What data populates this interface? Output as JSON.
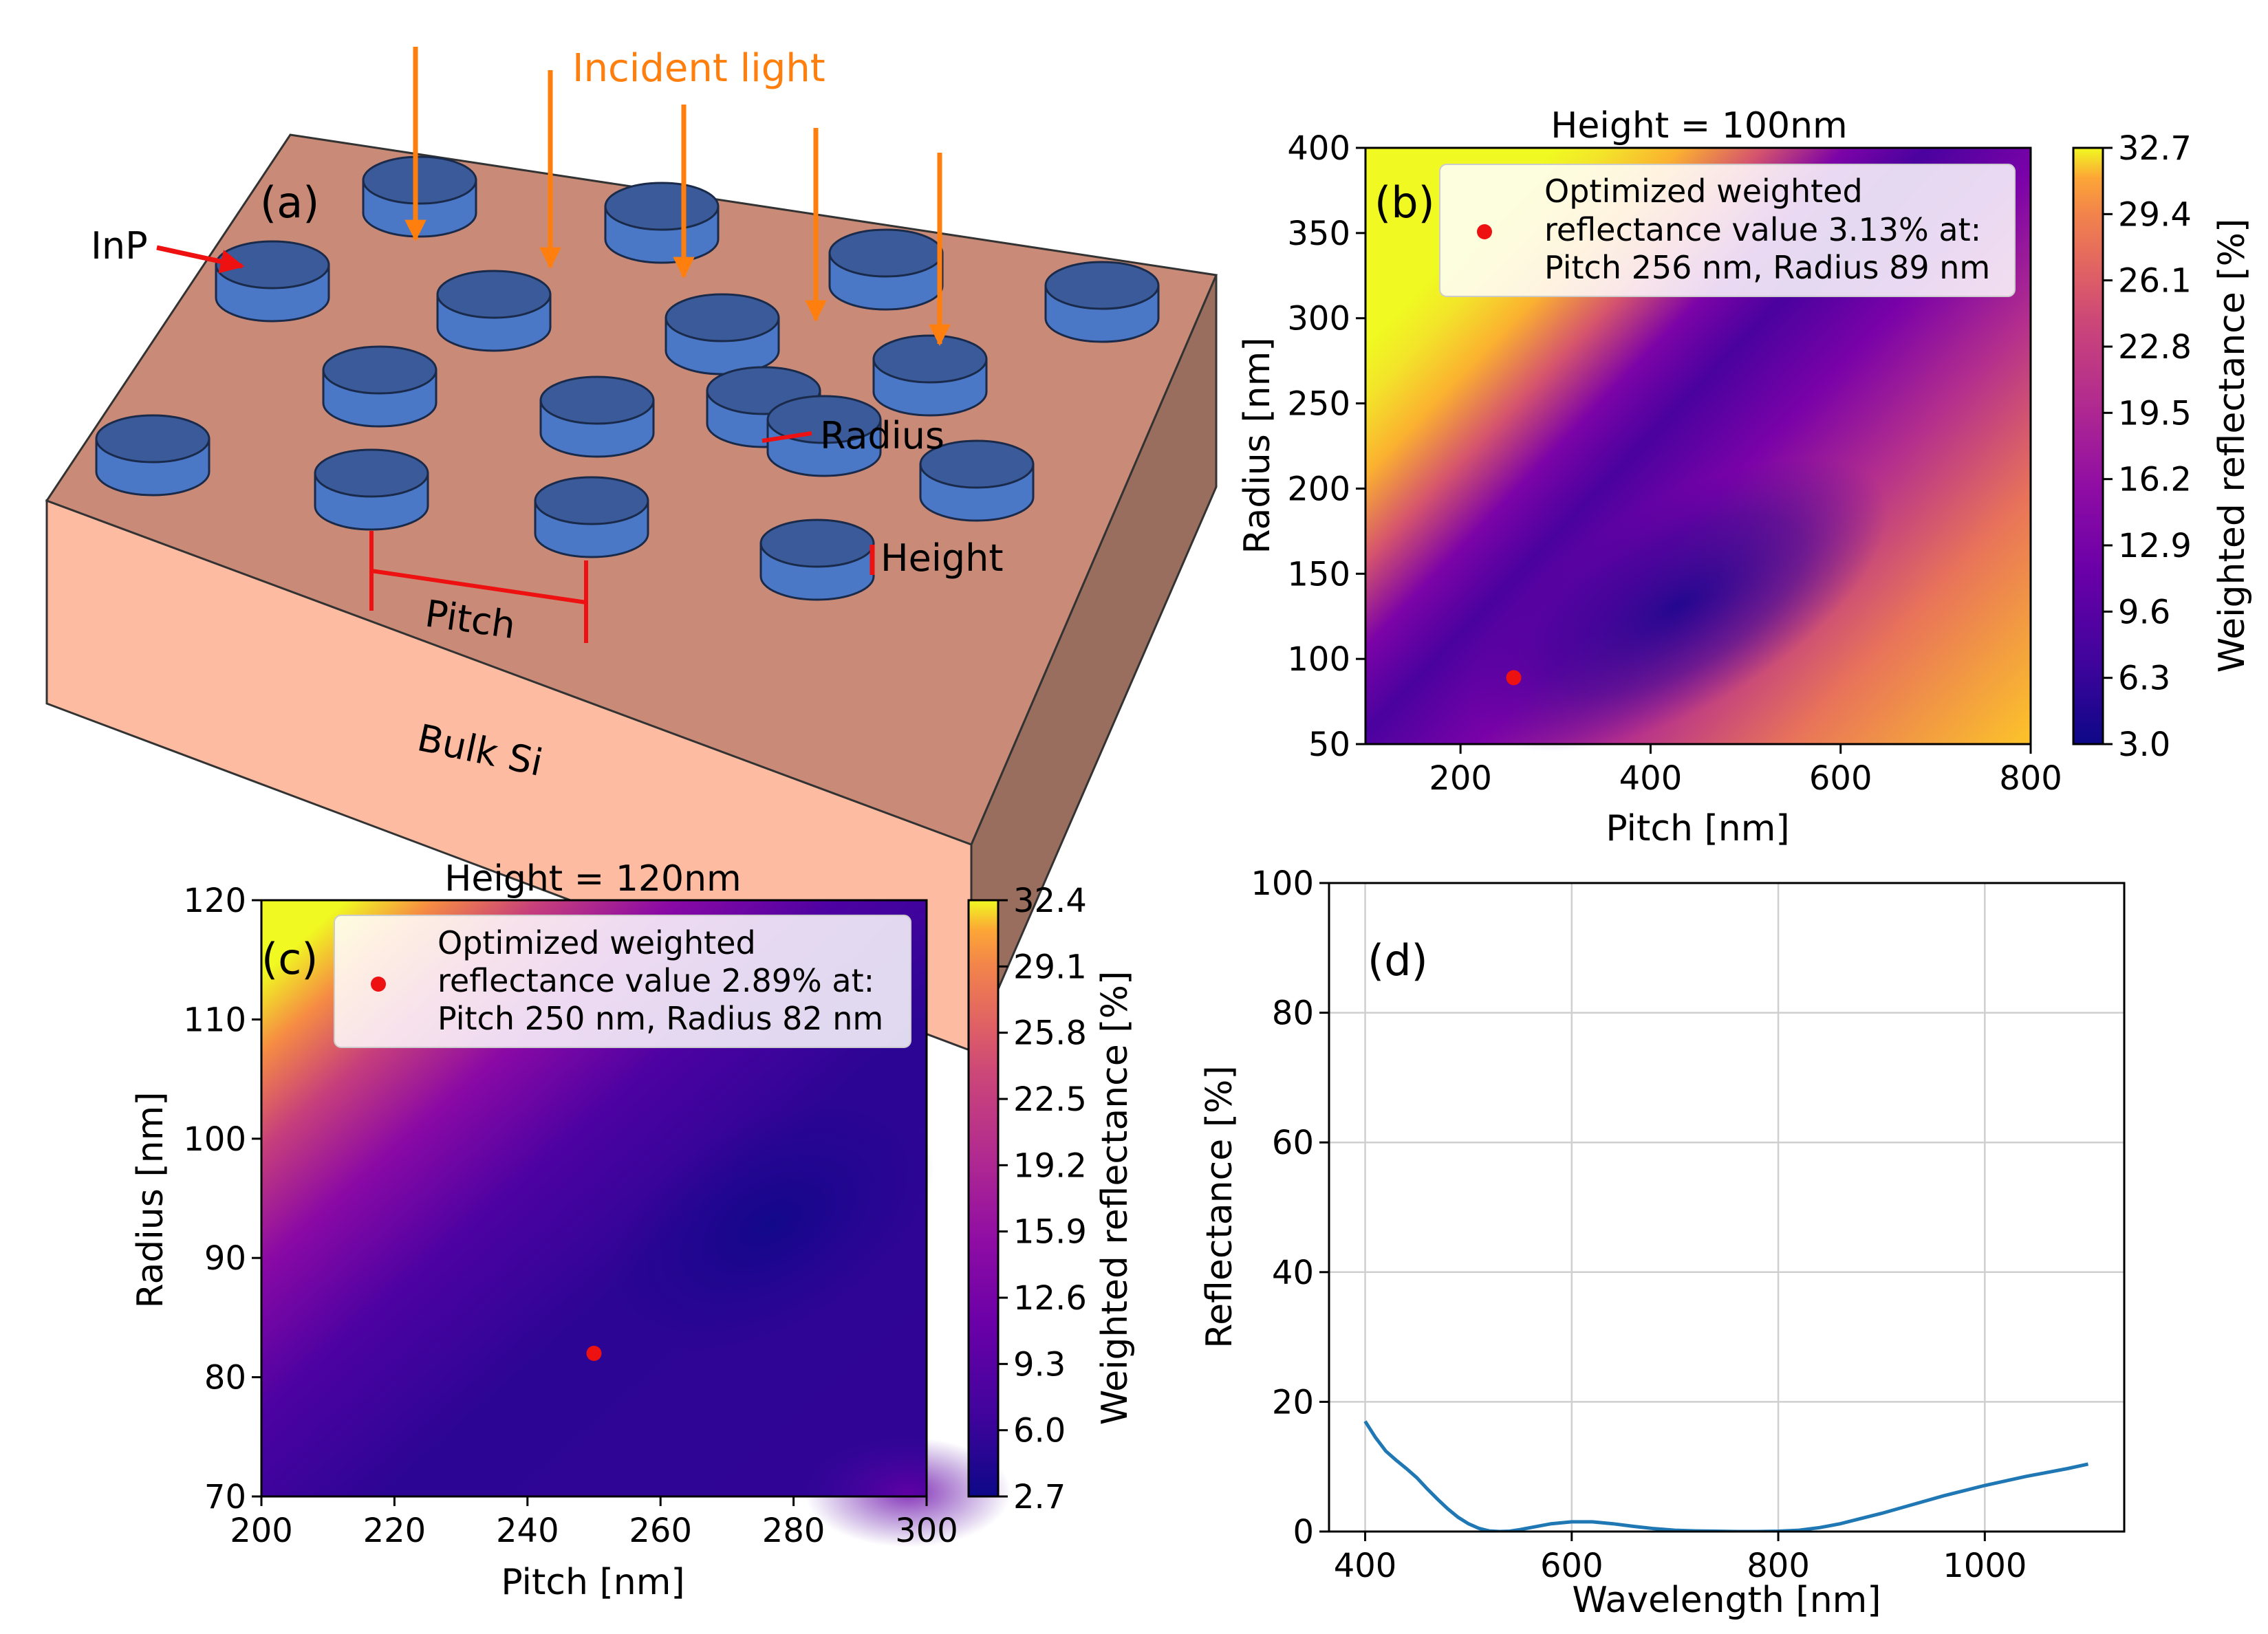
{
  "panel_a": {
    "label": "(a)",
    "incident_light": "Incident light",
    "inp": "InP",
    "radius": "Radius",
    "height": "Height",
    "pitch": "Pitch",
    "bulk": "Bulk Si"
  },
  "colors": {
    "arrow_orange": "#ff7f0e",
    "annot_red": "#ee1111",
    "disk_top": "#3a5a9a",
    "disk_side": "#4a78c6",
    "top_face": "#c98b77",
    "front_face": "#fdbba1",
    "side_face": "#9a6e5e",
    "line_blue": "#1f77b4"
  },
  "chart_data": [
    {
      "id": "b",
      "type": "heatmap",
      "panel_label": "(b)",
      "title": "Height =  100nm",
      "xlabel": "Pitch [nm]",
      "ylabel": "Radius [nm]",
      "xlim": [
        100,
        800
      ],
      "ylim": [
        50,
        400
      ],
      "xticks": [
        200,
        400,
        600,
        800
      ],
      "yticks": [
        50,
        100,
        150,
        200,
        250,
        300,
        350,
        400
      ],
      "colorbar_label": "Weighted reflectance [%]",
      "colorbar_ticks": [
        "3.0",
        "6.3",
        "9.6",
        "12.9",
        "16.2",
        "19.5",
        "22.8",
        "26.1",
        "29.4",
        "32.7"
      ],
      "colorbar_range": [
        3.0,
        32.7
      ],
      "optimum": {
        "pitch": 256,
        "radius": 89
      },
      "legend": [
        "Optimized weighted",
        "reflectance value 3.13% at:",
        "Pitch 256 nm, Radius 89 nm"
      ]
    },
    {
      "id": "c",
      "type": "heatmap",
      "panel_label": "(c)",
      "title": "Height =  120nm",
      "xlabel": "Pitch [nm]",
      "ylabel": "Radius [nm]",
      "xlim": [
        200,
        300
      ],
      "ylim": [
        70,
        120
      ],
      "xticks": [
        200,
        220,
        240,
        260,
        280,
        300
      ],
      "yticks": [
        70,
        80,
        90,
        100,
        110,
        120
      ],
      "colorbar_label": "Weighted reflectance [%]",
      "colorbar_ticks": [
        "2.7",
        "6.0",
        "9.3",
        "12.6",
        "15.9",
        "19.2",
        "22.5",
        "25.8",
        "29.1",
        "32.4"
      ],
      "colorbar_range": [
        2.7,
        32.4
      ],
      "optimum": {
        "pitch": 250,
        "radius": 82
      },
      "legend": [
        "Optimized weighted",
        "reflectance value 2.89% at:",
        "Pitch 250 nm, Radius 82 nm"
      ]
    },
    {
      "id": "d",
      "type": "line",
      "panel_label": "(d)",
      "xlabel": "Wavelength [nm]",
      "ylabel": "Reflectance [%]",
      "xlim": [
        365,
        1135
      ],
      "ylim": [
        0,
        100
      ],
      "xticks": [
        400,
        600,
        800,
        1000
      ],
      "yticks": [
        0,
        20,
        40,
        60,
        80,
        100
      ],
      "grid": true,
      "x": [
        400,
        410,
        420,
        430,
        440,
        450,
        460,
        470,
        480,
        490,
        500,
        510,
        520,
        530,
        540,
        550,
        560,
        580,
        600,
        620,
        640,
        660,
        680,
        700,
        720,
        740,
        760,
        780,
        800,
        820,
        840,
        860,
        880,
        900,
        920,
        940,
        960,
        980,
        1000,
        1020,
        1040,
        1060,
        1080,
        1100
      ],
      "y": [
        17,
        14.5,
        12.4,
        11,
        9.7,
        8.3,
        6.6,
        5.0,
        3.5,
        2.2,
        1.2,
        0.5,
        0.1,
        0.0,
        0.05,
        0.3,
        0.6,
        1.2,
        1.5,
        1.5,
        1.2,
        0.8,
        0.45,
        0.2,
        0.1,
        0.05,
        0.0,
        0.0,
        0.05,
        0.2,
        0.6,
        1.2,
        2.0,
        2.8,
        3.7,
        4.6,
        5.5,
        6.3,
        7.1,
        7.8,
        8.5,
        9.1,
        9.7,
        10.4
      ]
    }
  ]
}
